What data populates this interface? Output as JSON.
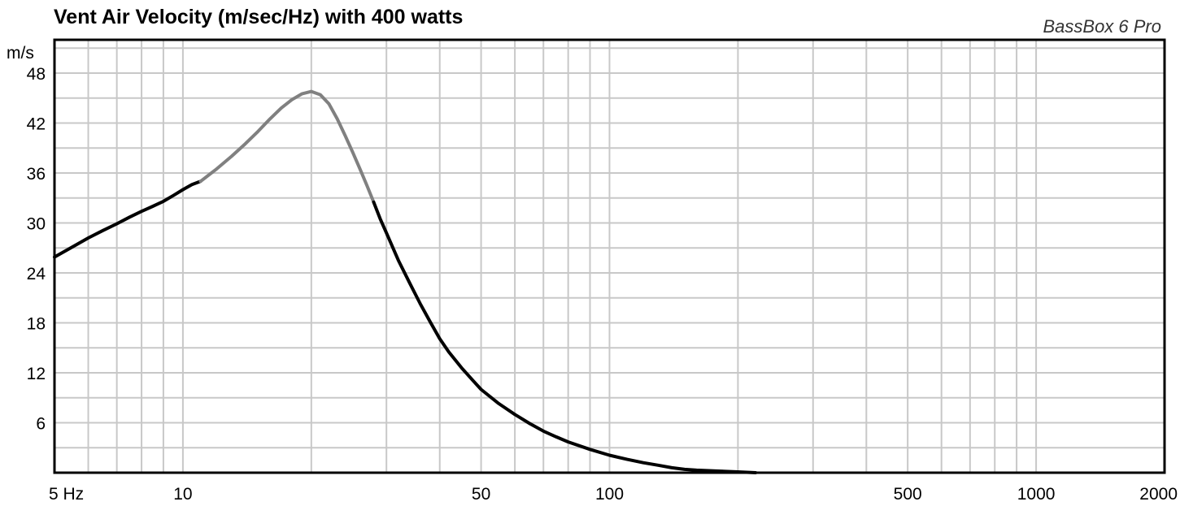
{
  "chart_data": {
    "type": "line",
    "title": "Vent Air Velocity (m/sec/Hz) with 400 watts",
    "brand": "BassBox 6 Pro",
    "ylabel": "m/s",
    "xlabel": "",
    "x_scale": "log",
    "xlim": [
      5,
      2000
    ],
    "ylim": [
      0,
      52
    ],
    "y_ticks": [
      6,
      12,
      18,
      24,
      30,
      36,
      42,
      48
    ],
    "y_tick_labels": [
      "6",
      "12",
      "18",
      "24",
      "30",
      "36",
      "42",
      "48"
    ],
    "x_ticks": [
      5,
      10,
      50,
      100,
      500,
      1000,
      2000
    ],
    "x_tick_labels": [
      "5 Hz",
      "10",
      "50",
      "100",
      "500",
      "1000",
      "2000"
    ],
    "grid": true,
    "colors": {
      "line": "#000000",
      "line_highlight": "#808080",
      "grid": "#c8c8c8",
      "frame": "#000000"
    },
    "series": [
      {
        "highlight_range": [
          11,
          28
        ],
        "x": [
          5,
          5.5,
          6,
          6.5,
          7,
          7.5,
          8,
          8.5,
          9,
          9.5,
          10,
          10.5,
          11,
          12,
          13,
          14,
          15,
          16,
          17,
          18,
          19,
          20,
          21,
          22,
          23,
          24,
          25,
          26,
          27,
          28,
          29,
          30,
          32,
          34,
          36,
          38,
          40,
          42,
          45,
          48,
          50,
          55,
          60,
          65,
          70,
          75,
          80,
          90,
          100,
          110,
          120,
          130,
          140,
          150,
          160,
          180,
          200,
          220
        ],
        "y": [
          25.9,
          27.1,
          28.2,
          29.1,
          29.9,
          30.7,
          31.4,
          32.0,
          32.6,
          33.3,
          34.0,
          34.6,
          35.0,
          36.5,
          38.0,
          39.5,
          41.0,
          42.5,
          43.8,
          44.8,
          45.5,
          45.8,
          45.4,
          44.3,
          42.5,
          40.5,
          38.5,
          36.5,
          34.5,
          32.5,
          30.5,
          28.8,
          25.5,
          22.8,
          20.3,
          18.1,
          16.1,
          14.5,
          12.6,
          11.0,
          10.0,
          8.3,
          7.0,
          5.9,
          5.0,
          4.3,
          3.7,
          2.8,
          2.1,
          1.6,
          1.2,
          0.9,
          0.6,
          0.4,
          0.3,
          0.2,
          0.1,
          0.0
        ]
      }
    ]
  }
}
